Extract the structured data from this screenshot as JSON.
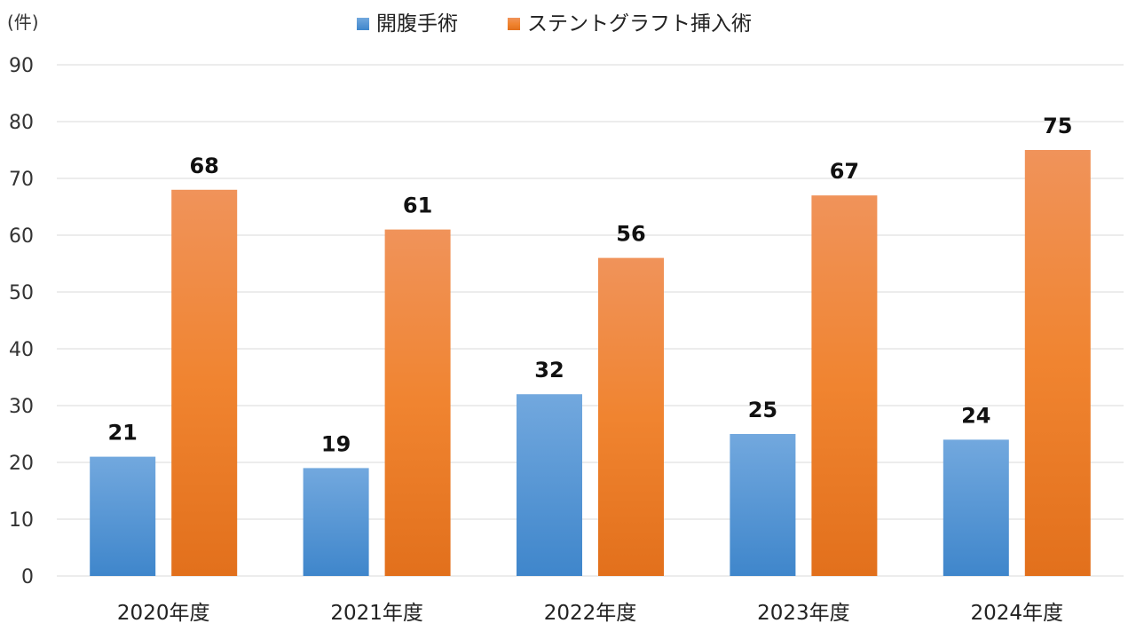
{
  "chart_data": {
    "type": "bar",
    "unit_label": "(件)",
    "categories": [
      "2020年度",
      "2021年度",
      "2022年度",
      "2023年度",
      "2024年度"
    ],
    "series": [
      {
        "name": "開腹手術",
        "values": [
          21,
          19,
          32,
          25,
          24
        ],
        "color": "#5B9BD5"
      },
      {
        "name": "ステントグラフト挿入術",
        "values": [
          68,
          61,
          56,
          67,
          75
        ],
        "color": "#ED7D31"
      }
    ],
    "ylim": [
      0,
      90
    ],
    "yticks": [
      0,
      10,
      20,
      30,
      40,
      50,
      60,
      70,
      80,
      90
    ],
    "grid": true,
    "legend_position": "top",
    "data_labels": true
  }
}
